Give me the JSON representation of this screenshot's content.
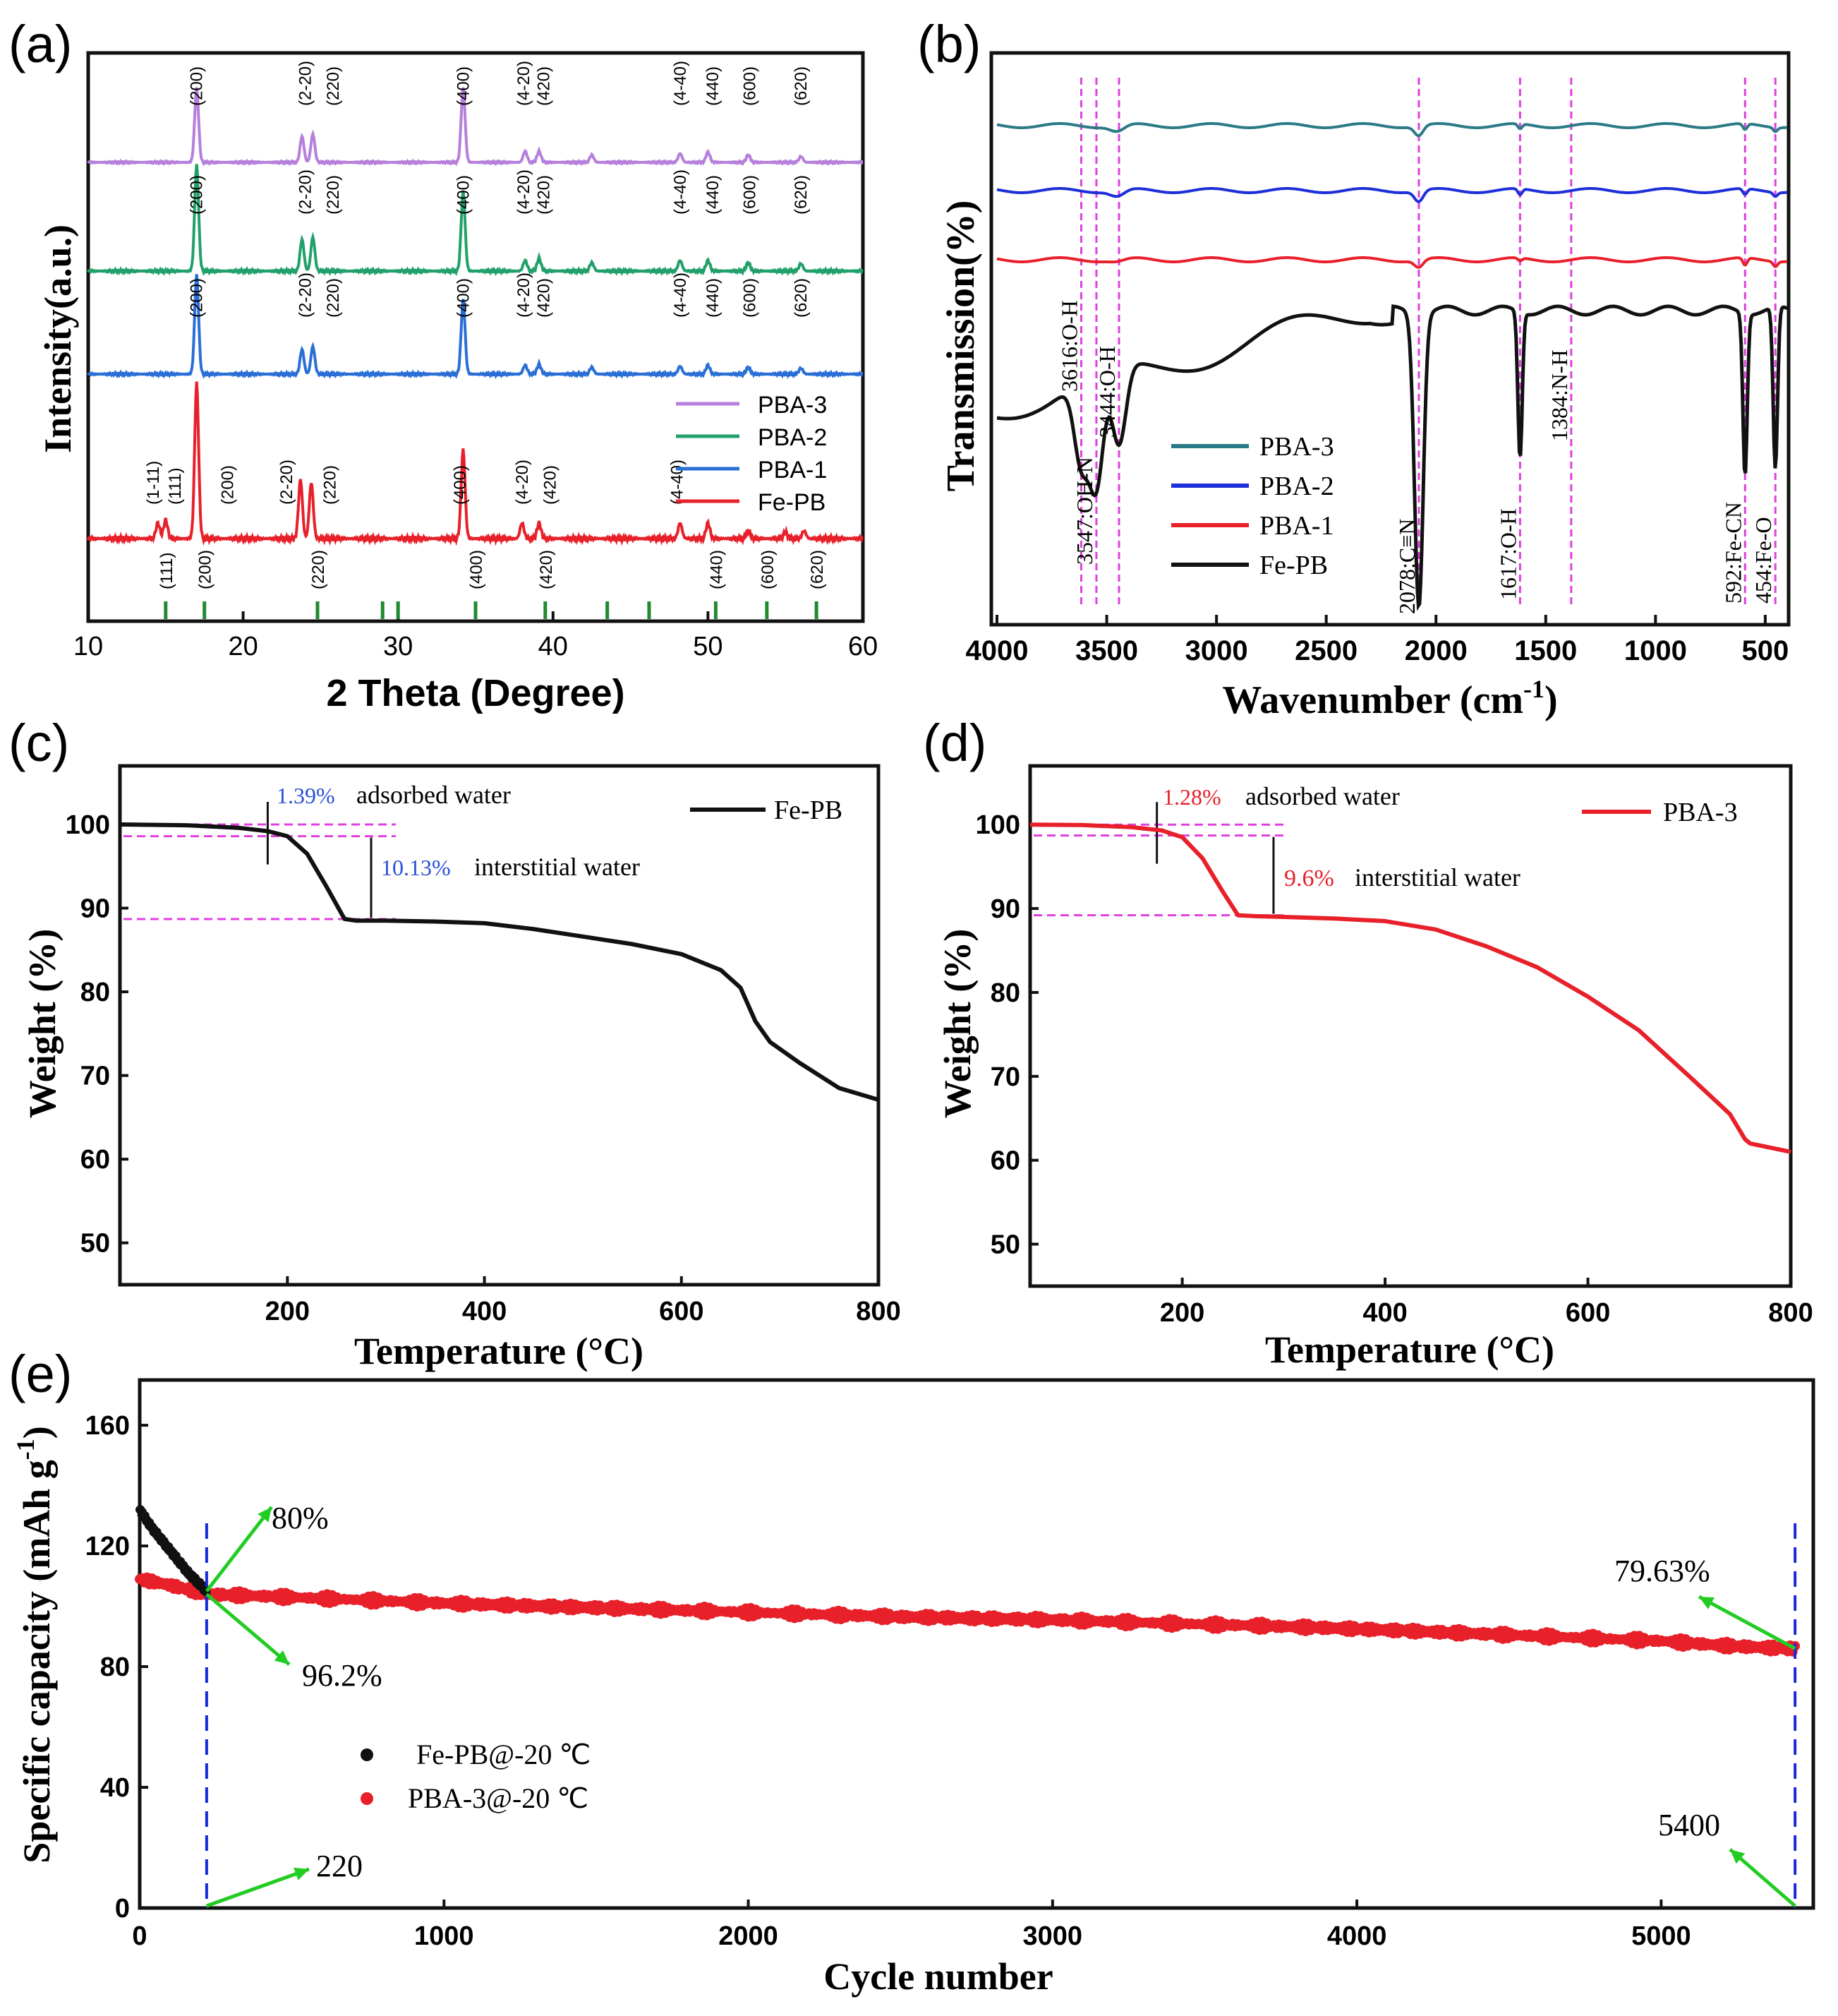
{
  "colors": {
    "pba3": "#b57fdb",
    "pba2": "#21a06a",
    "pba1": "#2a6fd6",
    "fepb": "#e8202a",
    "ftir_pba3": "#2b7a86",
    "ftir_pba2": "#1d2fd8",
    "ftir_pba1": "#e8202a",
    "black": "#111111",
    "guide": "#e040e0",
    "blue_dash": "#1a2ad8",
    "green_arrow": "#22cc22",
    "blue_text": "#2a4fd8",
    "red_text": "#e8202a",
    "ref_tick": "#1f8a30"
  },
  "chart_data": [
    {
      "panel": "(a)",
      "type": "line",
      "xlabel": "2 Theta (Degree)",
      "ylabel": "Intensity(a.u.)",
      "xlim": [
        10,
        60
      ],
      "xticks": [
        10,
        20,
        30,
        40,
        50,
        60
      ],
      "stack": [
        "PBA-3",
        "PBA-2",
        "PBA-1",
        "Fe-PB"
      ],
      "series": [
        {
          "name": "PBA-3",
          "color_key": "pba3",
          "peaks": [
            [
              17.0,
              1.0
            ],
            [
              23.8,
              0.35
            ],
            [
              24.5,
              0.38
            ],
            [
              34.2,
              1.0
            ],
            [
              38.2,
              0.15
            ],
            [
              39.1,
              0.15
            ],
            [
              42.5,
              0.1
            ],
            [
              48.2,
              0.12
            ],
            [
              50.0,
              0.14
            ],
            [
              52.6,
              0.1
            ],
            [
              56.0,
              0.08
            ]
          ],
          "labels": [
            [
              17.0,
              "(200)"
            ],
            [
              24.0,
              "(2-20)"
            ],
            [
              25.8,
              "(220)"
            ],
            [
              34.2,
              "(400)"
            ],
            [
              38.1,
              "(4-20)"
            ],
            [
              39.4,
              "(420)"
            ],
            [
              48.2,
              "(4-40)"
            ],
            [
              50.3,
              "(440)"
            ],
            [
              52.7,
              "(600)"
            ],
            [
              56.0,
              "(620)"
            ]
          ]
        },
        {
          "name": "PBA-2",
          "color_key": "pba2",
          "peaks": [
            [
              17.0,
              1.0
            ],
            [
              23.8,
              0.3
            ],
            [
              24.5,
              0.32
            ],
            [
              34.2,
              0.75
            ],
            [
              38.2,
              0.1
            ],
            [
              39.1,
              0.12
            ],
            [
              42.5,
              0.08
            ],
            [
              48.2,
              0.1
            ],
            [
              50.0,
              0.1
            ],
            [
              52.6,
              0.08
            ],
            [
              56.0,
              0.07
            ]
          ],
          "labels": [
            [
              17.0,
              "(200)"
            ],
            [
              24.0,
              "(2-20)"
            ],
            [
              25.8,
              "(220)"
            ],
            [
              34.2,
              "(400)"
            ],
            [
              38.1,
              "(4-20)"
            ],
            [
              39.4,
              "(420)"
            ],
            [
              48.2,
              "(4-40)"
            ],
            [
              50.3,
              "(440)"
            ],
            [
              52.7,
              "(600)"
            ],
            [
              56.0,
              "(620)"
            ]
          ]
        },
        {
          "name": "PBA-1",
          "color_key": "pba1",
          "peaks": [
            [
              17.0,
              1.0
            ],
            [
              23.8,
              0.25
            ],
            [
              24.5,
              0.28
            ],
            [
              34.2,
              0.75
            ],
            [
              38.2,
              0.09
            ],
            [
              39.1,
              0.1
            ],
            [
              42.5,
              0.07
            ],
            [
              48.2,
              0.08
            ],
            [
              50.0,
              0.09
            ],
            [
              52.6,
              0.07
            ],
            [
              56.0,
              0.06
            ]
          ],
          "labels": [
            [
              17.0,
              "(200)"
            ],
            [
              24.0,
              "(2-20)"
            ],
            [
              25.8,
              "(220)"
            ],
            [
              34.2,
              "(400)"
            ],
            [
              38.1,
              "(4-20)"
            ],
            [
              39.4,
              "(420)"
            ],
            [
              48.2,
              "(4-40)"
            ],
            [
              50.3,
              "(440)"
            ],
            [
              52.7,
              "(600)"
            ],
            [
              56.0,
              "(620)"
            ]
          ]
        },
        {
          "name": "Fe-PB",
          "color_key": "fepb",
          "peaks": [
            [
              14.5,
              0.1
            ],
            [
              15.0,
              0.12
            ],
            [
              17.0,
              1.0
            ],
            [
              23.7,
              0.38
            ],
            [
              24.4,
              0.36
            ],
            [
              34.2,
              0.57
            ],
            [
              38.0,
              0.1
            ],
            [
              39.1,
              0.1
            ],
            [
              48.2,
              0.1
            ],
            [
              50.0,
              0.1
            ],
            [
              52.6,
              0.05
            ],
            [
              55.0,
              0.04
            ],
            [
              56.2,
              0.05
            ]
          ],
          "labels": [
            [
              14.2,
              "(1-11)"
            ],
            [
              15.6,
              "(111)"
            ],
            [
              19.0,
              "(200)"
            ],
            [
              22.8,
              "(2-20)"
            ],
            [
              25.6,
              "(220)"
            ],
            [
              34.0,
              "(400)"
            ],
            [
              38.0,
              "(4-20)"
            ],
            [
              39.8,
              "(420)"
            ],
            [
              48.0,
              "(4-40)"
            ]
          ]
        }
      ],
      "reference": {
        "positions": [
          15.0,
          17.5,
          24.8,
          29.0,
          30.0,
          35.0,
          39.5,
          43.5,
          46.2,
          50.5,
          53.8,
          57.0
        ],
        "labels": [
          [
            15.0,
            "(111)"
          ],
          [
            17.5,
            "(200)"
          ],
          [
            24.8,
            "(220)"
          ],
          [
            35.0,
            "(400)"
          ],
          [
            39.5,
            "(420)"
          ],
          [
            50.5,
            "(440)"
          ],
          [
            53.8,
            "(600)"
          ],
          [
            57.0,
            "(620)"
          ]
        ]
      }
    },
    {
      "panel": "(b)",
      "type": "line",
      "xlabel": "Wavenumber (cm",
      "xlabel_sup": "-1",
      "xlabel_close": ")",
      "ylabel": "Transmission(%)",
      "xlim": [
        4000,
        400
      ],
      "xticks": [
        4000,
        3500,
        3000,
        2500,
        2000,
        1500,
        1000,
        500
      ],
      "guides": [
        3616,
        3547,
        3444,
        2078,
        1617,
        1384,
        592,
        454
      ],
      "band_labels": [
        "3616:O-H",
        "3547:OH-N",
        "3444:O-H",
        "2078:C≡N",
        "1617:O-H",
        "1384:N-H",
        "592:Fe-CN",
        "454:Fe-O"
      ],
      "series": [
        {
          "name": "PBA-3",
          "color_key": "ftir_pba3",
          "dips": [
            [
              3450,
              0.12
            ],
            [
              2078,
              0.2
            ],
            [
              1617,
              0.1
            ],
            [
              592,
              0.12
            ],
            [
              454,
              0.08
            ]
          ]
        },
        {
          "name": "PBA-2",
          "color_key": "ftir_pba2",
          "dips": [
            [
              3450,
              0.12
            ],
            [
              2078,
              0.22
            ],
            [
              1617,
              0.12
            ],
            [
              592,
              0.12
            ],
            [
              454,
              0.08
            ]
          ]
        },
        {
          "name": "PBA-1",
          "color_key": "ftir_pba1",
          "dips": [
            [
              3450,
              0.04
            ],
            [
              2078,
              0.15
            ],
            [
              1617,
              0.06
            ],
            [
              592,
              0.15
            ],
            [
              454,
              0.1
            ]
          ]
        },
        {
          "name": "Fe-PB",
          "color_key": "black",
          "dips": [
            [
              3616,
              0.5
            ],
            [
              3547,
              0.7
            ],
            [
              3444,
              0.5
            ],
            [
              2078,
              1.8
            ],
            [
              1617,
              0.9
            ],
            [
              592,
              1.0
            ],
            [
              454,
              1.0
            ]
          ]
        }
      ]
    },
    {
      "panel": "(c)",
      "type": "line",
      "xlabel": "Temperature (°C)",
      "ylabel": "Weight (%)",
      "xlim": [
        30,
        800
      ],
      "ylim": [
        45,
        107
      ],
      "xticks": [
        200,
        400,
        600,
        800
      ],
      "yticks": [
        50,
        60,
        70,
        80,
        90,
        100
      ],
      "legend": "Fe-PB",
      "x": [
        30,
        100,
        150,
        180,
        200,
        220,
        240,
        258,
        270,
        300,
        350,
        400,
        450,
        500,
        550,
        600,
        640,
        660,
        675,
        690,
        720,
        760,
        800
      ],
      "y": [
        100,
        99.9,
        99.6,
        99.2,
        98.6,
        96.5,
        92.5,
        88.7,
        88.5,
        88.5,
        88.4,
        88.2,
        87.5,
        86.6,
        85.7,
        84.5,
        82.6,
        80.5,
        76.5,
        74.0,
        71.5,
        68.5,
        67.1
      ],
      "annotations": {
        "a_value": "1.39%",
        "a_text": "adsorbed water",
        "i_value": "10.13%",
        "i_text": "interstitial water"
      }
    },
    {
      "panel": "(d)",
      "type": "line",
      "xlabel": "Temperature (°C)",
      "ylabel": "Weight (%)",
      "xlim": [
        50,
        800
      ],
      "ylim": [
        45,
        107
      ],
      "xticks": [
        200,
        400,
        600,
        800
      ],
      "yticks": [
        50,
        60,
        70,
        80,
        90,
        100
      ],
      "legend": "PBA-3",
      "x": [
        50,
        100,
        150,
        180,
        200,
        220,
        240,
        255,
        270,
        300,
        350,
        400,
        450,
        500,
        550,
        600,
        650,
        700,
        740,
        755,
        760,
        800
      ],
      "y": [
        100,
        99.95,
        99.7,
        99.3,
        98.5,
        96.0,
        92.0,
        89.2,
        89.1,
        89.0,
        88.8,
        88.5,
        87.5,
        85.5,
        83.0,
        79.5,
        75.5,
        70.0,
        65.5,
        62.5,
        62.0,
        61.0
      ],
      "annotations": {
        "a_value": "1.28%",
        "a_text": "adsorbed water",
        "i_value": "9.6%",
        "i_text": "interstitial water"
      }
    },
    {
      "panel": "(e)",
      "type": "scatter",
      "xlabel": "Cycle number",
      "ylabel": "Specific capacity (mAh g",
      "ylabel_sup": "-1",
      "ylabel_close": ")",
      "xlim": [
        0,
        5500
      ],
      "ylim": [
        0,
        175
      ],
      "xticks": [
        0,
        1000,
        2000,
        3000,
        4000,
        5000
      ],
      "yticks": [
        0,
        40,
        80,
        120,
        160
      ],
      "series": [
        {
          "name": "Fe-PB@-20 ℃",
          "color_key": "black",
          "x": [
            0,
            40,
            80,
            120,
            160,
            200,
            220
          ],
          "y": [
            132,
            126,
            121,
            116,
            111,
            107,
            105
          ]
        },
        {
          "name": "PBA-3@-20 ℃",
          "color_key": "fepb",
          "x": [
            0,
            50,
            100,
            220,
            500,
            1000,
            1500,
            2000,
            2500,
            3000,
            3500,
            3700,
            4000,
            4500,
            5000,
            5200,
            5400,
            5440
          ],
          "y": [
            109,
            108,
            107,
            104,
            103,
            101,
            99.5,
            98,
            96.5,
            95.5,
            94,
            93.5,
            92.5,
            90.5,
            88.5,
            87,
            86,
            86
          ]
        }
      ],
      "markers": [
        220,
        5440
      ],
      "annotations": {
        "p80": "80%",
        "p962": "96.2%",
        "p7963": "79.63%",
        "c220": "220",
        "c5400": "5400"
      }
    }
  ]
}
